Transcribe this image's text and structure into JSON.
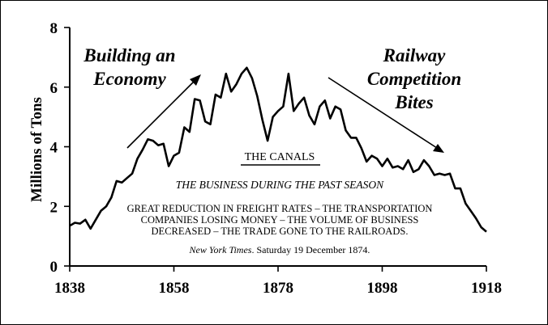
{
  "chart_data": {
    "type": "line",
    "ylabel": "Millions of Tons",
    "xlabel": "",
    "xlim": [
      1838,
      1918
    ],
    "ylim": [
      0,
      8
    ],
    "x_ticks": [
      1838,
      1858,
      1878,
      1898,
      1918
    ],
    "y_ticks": [
      0,
      2,
      4,
      6,
      8
    ],
    "grid": false,
    "series": [
      {
        "x": [
          1838,
          1839,
          1840,
          1841,
          1842,
          1843,
          1844,
          1845,
          1846,
          1847,
          1848,
          1849,
          1850,
          1851,
          1852,
          1853,
          1854,
          1855,
          1856,
          1857,
          1858,
          1859,
          1860,
          1861,
          1862,
          1863,
          1864,
          1865,
          1866,
          1867,
          1868,
          1869,
          1870,
          1871,
          1872,
          1873,
          1874,
          1875,
          1876,
          1877,
          1878,
          1879,
          1880,
          1881,
          1882,
          1883,
          1884,
          1885,
          1886,
          1887,
          1888,
          1889,
          1890,
          1891,
          1892,
          1893,
          1894,
          1895,
          1896,
          1897,
          1898,
          1899,
          1900,
          1901,
          1902,
          1903,
          1904,
          1905,
          1906,
          1907,
          1908,
          1909,
          1910,
          1911,
          1912,
          1913,
          1914,
          1915,
          1916,
          1917,
          1918
        ],
        "values": [
          1.35,
          1.45,
          1.42,
          1.55,
          1.25,
          1.55,
          1.85,
          2.0,
          2.3,
          2.85,
          2.8,
          2.95,
          3.1,
          3.6,
          3.9,
          4.25,
          4.2,
          4.05,
          4.1,
          3.35,
          3.7,
          3.8,
          4.65,
          4.5,
          5.6,
          5.55,
          4.85,
          4.75,
          5.75,
          5.65,
          6.45,
          5.85,
          6.1,
          6.45,
          6.65,
          6.3,
          5.7,
          4.9,
          4.2,
          5.0,
          5.2,
          5.35,
          6.45,
          5.2,
          5.45,
          5.65,
          5.05,
          4.75,
          5.35,
          5.55,
          4.95,
          5.35,
          5.25,
          4.55,
          4.3,
          4.3,
          3.95,
          3.5,
          3.7,
          3.6,
          3.35,
          3.6,
          3.3,
          3.35,
          3.25,
          3.55,
          3.15,
          3.25,
          3.55,
          3.35,
          3.05,
          3.1,
          3.05,
          3.1,
          2.6,
          2.6,
          2.1,
          1.85,
          1.6,
          1.3,
          1.15
        ]
      }
    ],
    "annotations": {
      "left_headline": [
        "Building an",
        "Economy"
      ],
      "right_headline": [
        "Railway",
        "Competition",
        "Bites"
      ],
      "newspaper_title": "THE CANALS",
      "newspaper_subtitle": "THE BUSINESS DURING THE PAST SEASON",
      "newspaper_body": [
        "GREAT REDUCTION IN FREIGHT RATES – THE TRANSPORTATION",
        "COMPANIES LOSING MONEY – THE VOLUME OF BUSINESS",
        "DECREASED – THE TRADE GONE TO THE RAILROADS."
      ],
      "newspaper_source_italic": "New York Times",
      "newspaper_source_rest": ". Saturday 19 December 1874."
    }
  }
}
